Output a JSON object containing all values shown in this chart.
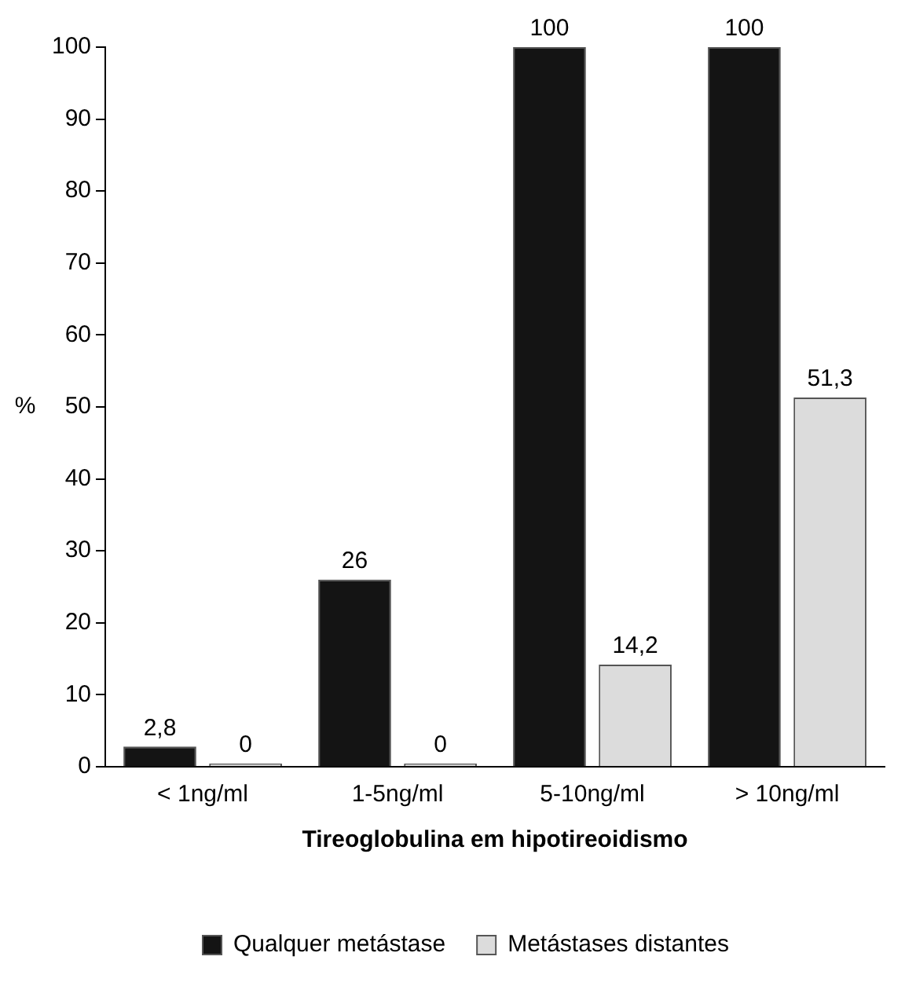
{
  "chart_data": {
    "type": "bar",
    "xlabel": "Tireoglobulina em hipotireoidismo",
    "ylabel": "%",
    "categories": [
      "< 1ng/ml",
      "1-5ng/ml",
      "5-10ng/ml",
      "> 10ng/ml"
    ],
    "series": [
      {
        "name": "Qualquer metástase",
        "color": "#141414",
        "values": [
          2.8,
          26,
          100,
          100
        ],
        "value_labels": [
          "2,8",
          "26",
          "100",
          "100"
        ]
      },
      {
        "name": "Metástases distantes",
        "color": "#dcdcdc",
        "values": [
          0,
          0,
          14.2,
          51.3
        ],
        "value_labels": [
          "0",
          "0",
          "14,2",
          "51,3"
        ]
      }
    ],
    "ylim": [
      0,
      100
    ],
    "yticks": [
      0,
      10,
      20,
      30,
      40,
      50,
      60,
      70,
      80,
      90,
      100
    ],
    "grid": false,
    "legend": "bottom"
  }
}
